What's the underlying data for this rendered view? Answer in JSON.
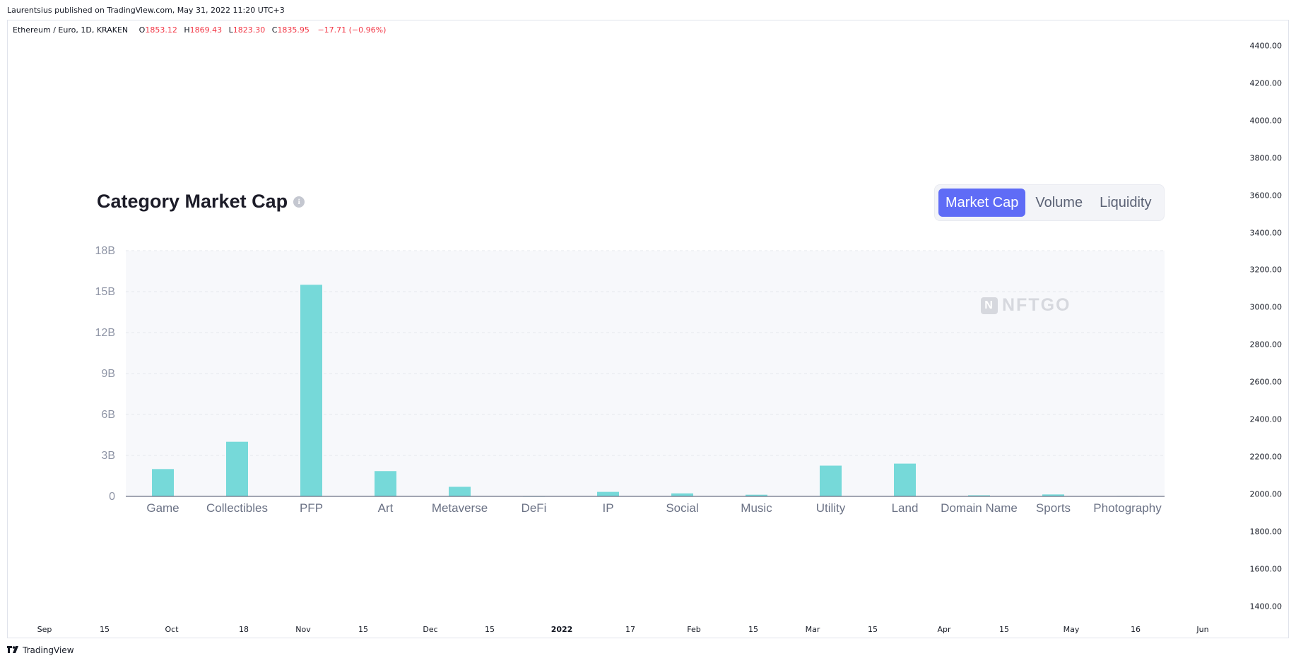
{
  "header": {
    "published": "Laurentsius published on TradingView.com, May 31, 2022 11:20 UTC+3"
  },
  "legend": {
    "symbol": "Ethereum / Euro, 1D, KRAKEN",
    "o_label": "O",
    "o_value": "1853.12",
    "h_label": "H",
    "h_value": "1869.43",
    "l_label": "L",
    "l_value": "1823.30",
    "c_label": "C",
    "c_value": "1835.95",
    "change": "−17.71 (−0.96%)"
  },
  "price_axis": [
    "4400.00",
    "4200.00",
    "4000.00",
    "3800.00",
    "3600.00",
    "3400.00",
    "3200.00",
    "3000.00",
    "2800.00",
    "2600.00",
    "2400.00",
    "2200.00",
    "2000.00",
    "1800.00",
    "1600.00",
    "1400.00"
  ],
  "date_axis": [
    {
      "label": "Sep",
      "bold": false
    },
    {
      "label": "15",
      "bold": false
    },
    {
      "label": "Oct",
      "bold": false
    },
    {
      "label": "18",
      "bold": false
    },
    {
      "label": "Nov",
      "bold": false
    },
    {
      "label": "15",
      "bold": false
    },
    {
      "label": "Dec",
      "bold": false
    },
    {
      "label": "15",
      "bold": false
    },
    {
      "label": "2022",
      "bold": true
    },
    {
      "label": "17",
      "bold": false
    },
    {
      "label": "Feb",
      "bold": false
    },
    {
      "label": "15",
      "bold": false
    },
    {
      "label": "Mar",
      "bold": false
    },
    {
      "label": "15",
      "bold": false
    },
    {
      "label": "Apr",
      "bold": false
    },
    {
      "label": "15",
      "bold": false
    },
    {
      "label": "May",
      "bold": false
    },
    {
      "label": "16",
      "bold": false
    },
    {
      "label": "Jun",
      "bold": false
    }
  ],
  "footer": {
    "brand": "TradingView"
  },
  "panel": {
    "title": "Category Market Cap",
    "info_icon": "info-icon",
    "tabs": [
      {
        "label": "Market Cap",
        "active": true
      },
      {
        "label": "Volume",
        "active": false
      },
      {
        "label": "Liquidity",
        "active": false
      }
    ],
    "watermark": "NFTGO",
    "accent": "#5f6cf6",
    "bar_color": "#76d9d9"
  },
  "chart_data": {
    "type": "bar",
    "title": "Category Market Cap",
    "categories": [
      "Game",
      "Collectibles",
      "PFP",
      "Art",
      "Metaverse",
      "DeFi",
      "IP",
      "Social",
      "Music",
      "Utility",
      "Land",
      "Domain Name",
      "Sports",
      "Photography"
    ],
    "values": [
      2.0,
      4.0,
      15.5,
      1.85,
      0.7,
      0.02,
      0.33,
      0.22,
      0.12,
      2.25,
      2.4,
      0.08,
      0.14,
      0.03
    ],
    "unit": "B",
    "ylim": [
      0,
      18
    ],
    "yticks": [
      "0",
      "3B",
      "6B",
      "9B",
      "12B",
      "15B",
      "18B"
    ],
    "ytick_values": [
      0,
      3,
      6,
      9,
      12,
      15,
      18
    ],
    "grid": true
  }
}
